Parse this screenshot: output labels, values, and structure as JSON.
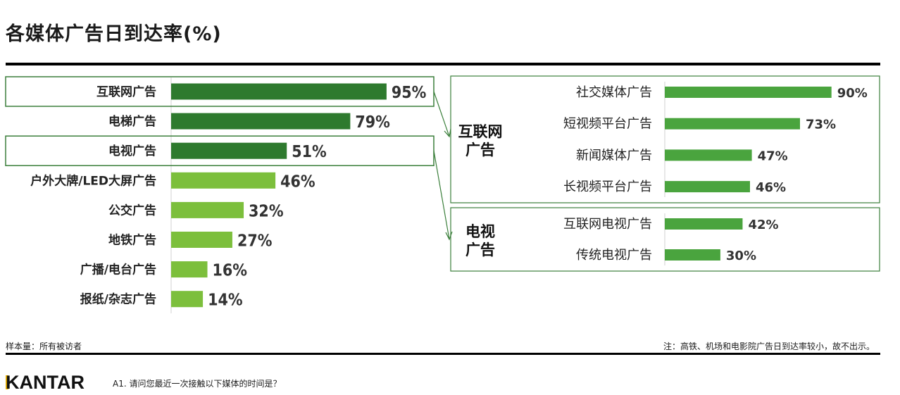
{
  "title": "各媒体广告日到达率(%)",
  "colors": {
    "dark_green": "#2e7a2e",
    "light_green": "#7cbf3c",
    "mid_green": "#4aa43e",
    "box_border": "#3b7f3b"
  },
  "chart_data": [
    {
      "type": "bar",
      "orientation": "horizontal",
      "categories": [
        "互联网广告",
        "电梯广告",
        "电视广告",
        "户外大牌/LED大屏广告",
        "公交广告",
        "地铁广告",
        "广播/电台广告",
        "报纸/杂志广告"
      ],
      "values": [
        95,
        79,
        51,
        46,
        32,
        27,
        16,
        14
      ],
      "value_labels": [
        "95%",
        "79%",
        "51%",
        "46%",
        "32%",
        "27%",
        "16%",
        "14%"
      ],
      "highlighted": [
        "互联网广告",
        "电视广告"
      ],
      "xlim": [
        0,
        100
      ]
    },
    {
      "type": "bar",
      "orientation": "horizontal",
      "group": "互联网\n广告",
      "categories": [
        "社交媒体广告",
        "短视频平台广告",
        "新闻媒体广告",
        "长视频平台广告"
      ],
      "values": [
        90,
        73,
        47,
        46
      ],
      "value_labels": [
        "90%",
        "73%",
        "47%",
        "46%"
      ],
      "xlim": [
        0,
        100
      ]
    },
    {
      "type": "bar",
      "orientation": "horizontal",
      "group": "电视\n广告",
      "categories": [
        "互联网电视广告",
        "传统电视广告"
      ],
      "values": [
        42,
        30
      ],
      "value_labels": [
        "42%",
        "30%"
      ],
      "xlim": [
        0,
        100
      ]
    }
  ],
  "groups": [
    {
      "line1": "互联网",
      "line2": "广告"
    },
    {
      "line1": "电视",
      "line2": "广告"
    }
  ],
  "footer": {
    "sample": "样本量：所有被访者",
    "note": "注：高铁、机场和电影院广告日到达率较小，故不出示。",
    "brand": "KANTAR",
    "question": "A1. 请问您最近一次接触以下媒体的时间是？"
  }
}
